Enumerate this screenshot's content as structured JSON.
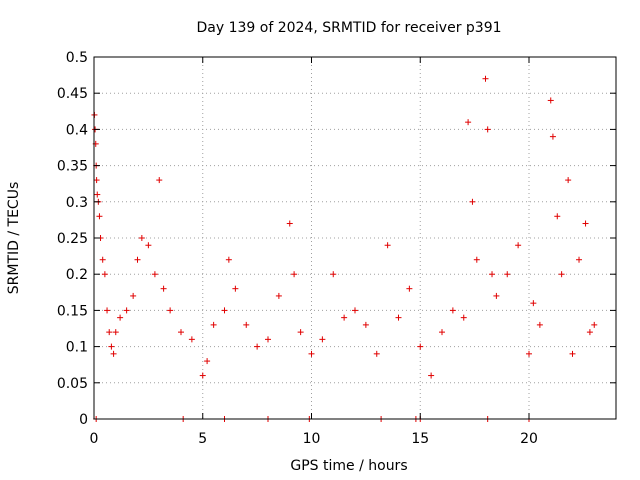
{
  "chart_data": {
    "type": "scatter",
    "title": "Day 139 of 2024, SRMTID for receiver p391",
    "xlabel": "GPS time / hours",
    "ylabel": "SRMTID / TECUs",
    "xlim": [
      0,
      24
    ],
    "ylim": [
      0,
      0.5
    ],
    "x_ticks": [
      0,
      5,
      10,
      15,
      20
    ],
    "x_tick_labels": [
      "0",
      "5",
      "10",
      "15",
      "20"
    ],
    "y_ticks": [
      0,
      0.05,
      0.1,
      0.15,
      0.2,
      0.25,
      0.3,
      0.35,
      0.4,
      0.45,
      0.5
    ],
    "y_tick_labels": [
      "0",
      "0.05",
      "0.1",
      "0.15",
      "0.2",
      "0.25",
      "0.3",
      "0.35",
      "0.4",
      "0.45",
      "0.5"
    ],
    "grid": true,
    "marker": "+",
    "color": "#e00000",
    "x_range_data": [
      0,
      23
    ],
    "series": [
      {
        "name": "SRMTID",
        "points": [
          [
            0.02,
            0.42
          ],
          [
            0.05,
            0.4
          ],
          [
            0.08,
            0.38
          ],
          [
            0.1,
            0.35
          ],
          [
            0.12,
            0.33
          ],
          [
            0.15,
            0.31
          ],
          [
            0.2,
            0.3
          ],
          [
            0.25,
            0.28
          ],
          [
            0.3,
            0.25
          ],
          [
            0.4,
            0.22
          ],
          [
            0.5,
            0.2
          ],
          [
            0.6,
            0.15
          ],
          [
            0.7,
            0.12
          ],
          [
            0.8,
            0.1
          ],
          [
            0.9,
            0.09
          ],
          [
            1.0,
            0.12
          ],
          [
            1.2,
            0.14
          ],
          [
            1.5,
            0.15
          ],
          [
            1.8,
            0.17
          ],
          [
            2.0,
            0.22
          ],
          [
            2.2,
            0.25
          ],
          [
            2.5,
            0.24
          ],
          [
            2.8,
            0.2
          ],
          [
            3.0,
            0.33
          ],
          [
            3.2,
            0.18
          ],
          [
            3.5,
            0.15
          ],
          [
            4.0,
            0.12
          ],
          [
            4.5,
            0.11
          ],
          [
            5.0,
            0.06
          ],
          [
            5.2,
            0.08
          ],
          [
            5.5,
            0.13
          ],
          [
            6.0,
            0.15
          ],
          [
            6.2,
            0.22
          ],
          [
            6.5,
            0.18
          ],
          [
            7.0,
            0.13
          ],
          [
            7.5,
            0.1
          ],
          [
            8.0,
            0.11
          ],
          [
            8.5,
            0.17
          ],
          [
            9.0,
            0.27
          ],
          [
            9.2,
            0.2
          ],
          [
            9.5,
            0.12
          ],
          [
            10.0,
            0.09
          ],
          [
            10.5,
            0.11
          ],
          [
            11.0,
            0.2
          ],
          [
            11.5,
            0.14
          ],
          [
            12.0,
            0.15
          ],
          [
            12.5,
            0.13
          ],
          [
            13.0,
            0.09
          ],
          [
            13.5,
            0.24
          ],
          [
            14.0,
            0.14
          ],
          [
            14.5,
            0.18
          ],
          [
            15.0,
            0.1
          ],
          [
            15.5,
            0.06
          ],
          [
            16.0,
            0.12
          ],
          [
            16.5,
            0.15
          ],
          [
            17.0,
            0.14
          ],
          [
            17.2,
            0.41
          ],
          [
            17.4,
            0.3
          ],
          [
            17.6,
            0.22
          ],
          [
            18.0,
            0.47
          ],
          [
            18.1,
            0.4
          ],
          [
            18.3,
            0.2
          ],
          [
            18.5,
            0.17
          ],
          [
            19.0,
            0.2
          ],
          [
            19.5,
            0.24
          ],
          [
            20.0,
            0.09
          ],
          [
            20.2,
            0.16
          ],
          [
            20.5,
            0.13
          ],
          [
            21.0,
            0.44
          ],
          [
            21.1,
            0.39
          ],
          [
            21.3,
            0.28
          ],
          [
            21.5,
            0.2
          ],
          [
            21.8,
            0.33
          ],
          [
            22.0,
            0.09
          ],
          [
            22.3,
            0.22
          ],
          [
            22.6,
            0.27
          ],
          [
            22.8,
            0.12
          ],
          [
            23.0,
            0.13
          ],
          [
            0.1,
            0.0
          ],
          [
            4.1,
            0.0
          ],
          [
            6.0,
            0.0
          ],
          [
            8.0,
            0.0
          ],
          [
            9.9,
            0.0
          ],
          [
            13.2,
            0.0
          ],
          [
            14.8,
            0.0
          ],
          [
            15.0,
            0.0
          ],
          [
            18.1,
            0.0
          ],
          [
            20.0,
            0.0
          ]
        ]
      }
    ]
  }
}
